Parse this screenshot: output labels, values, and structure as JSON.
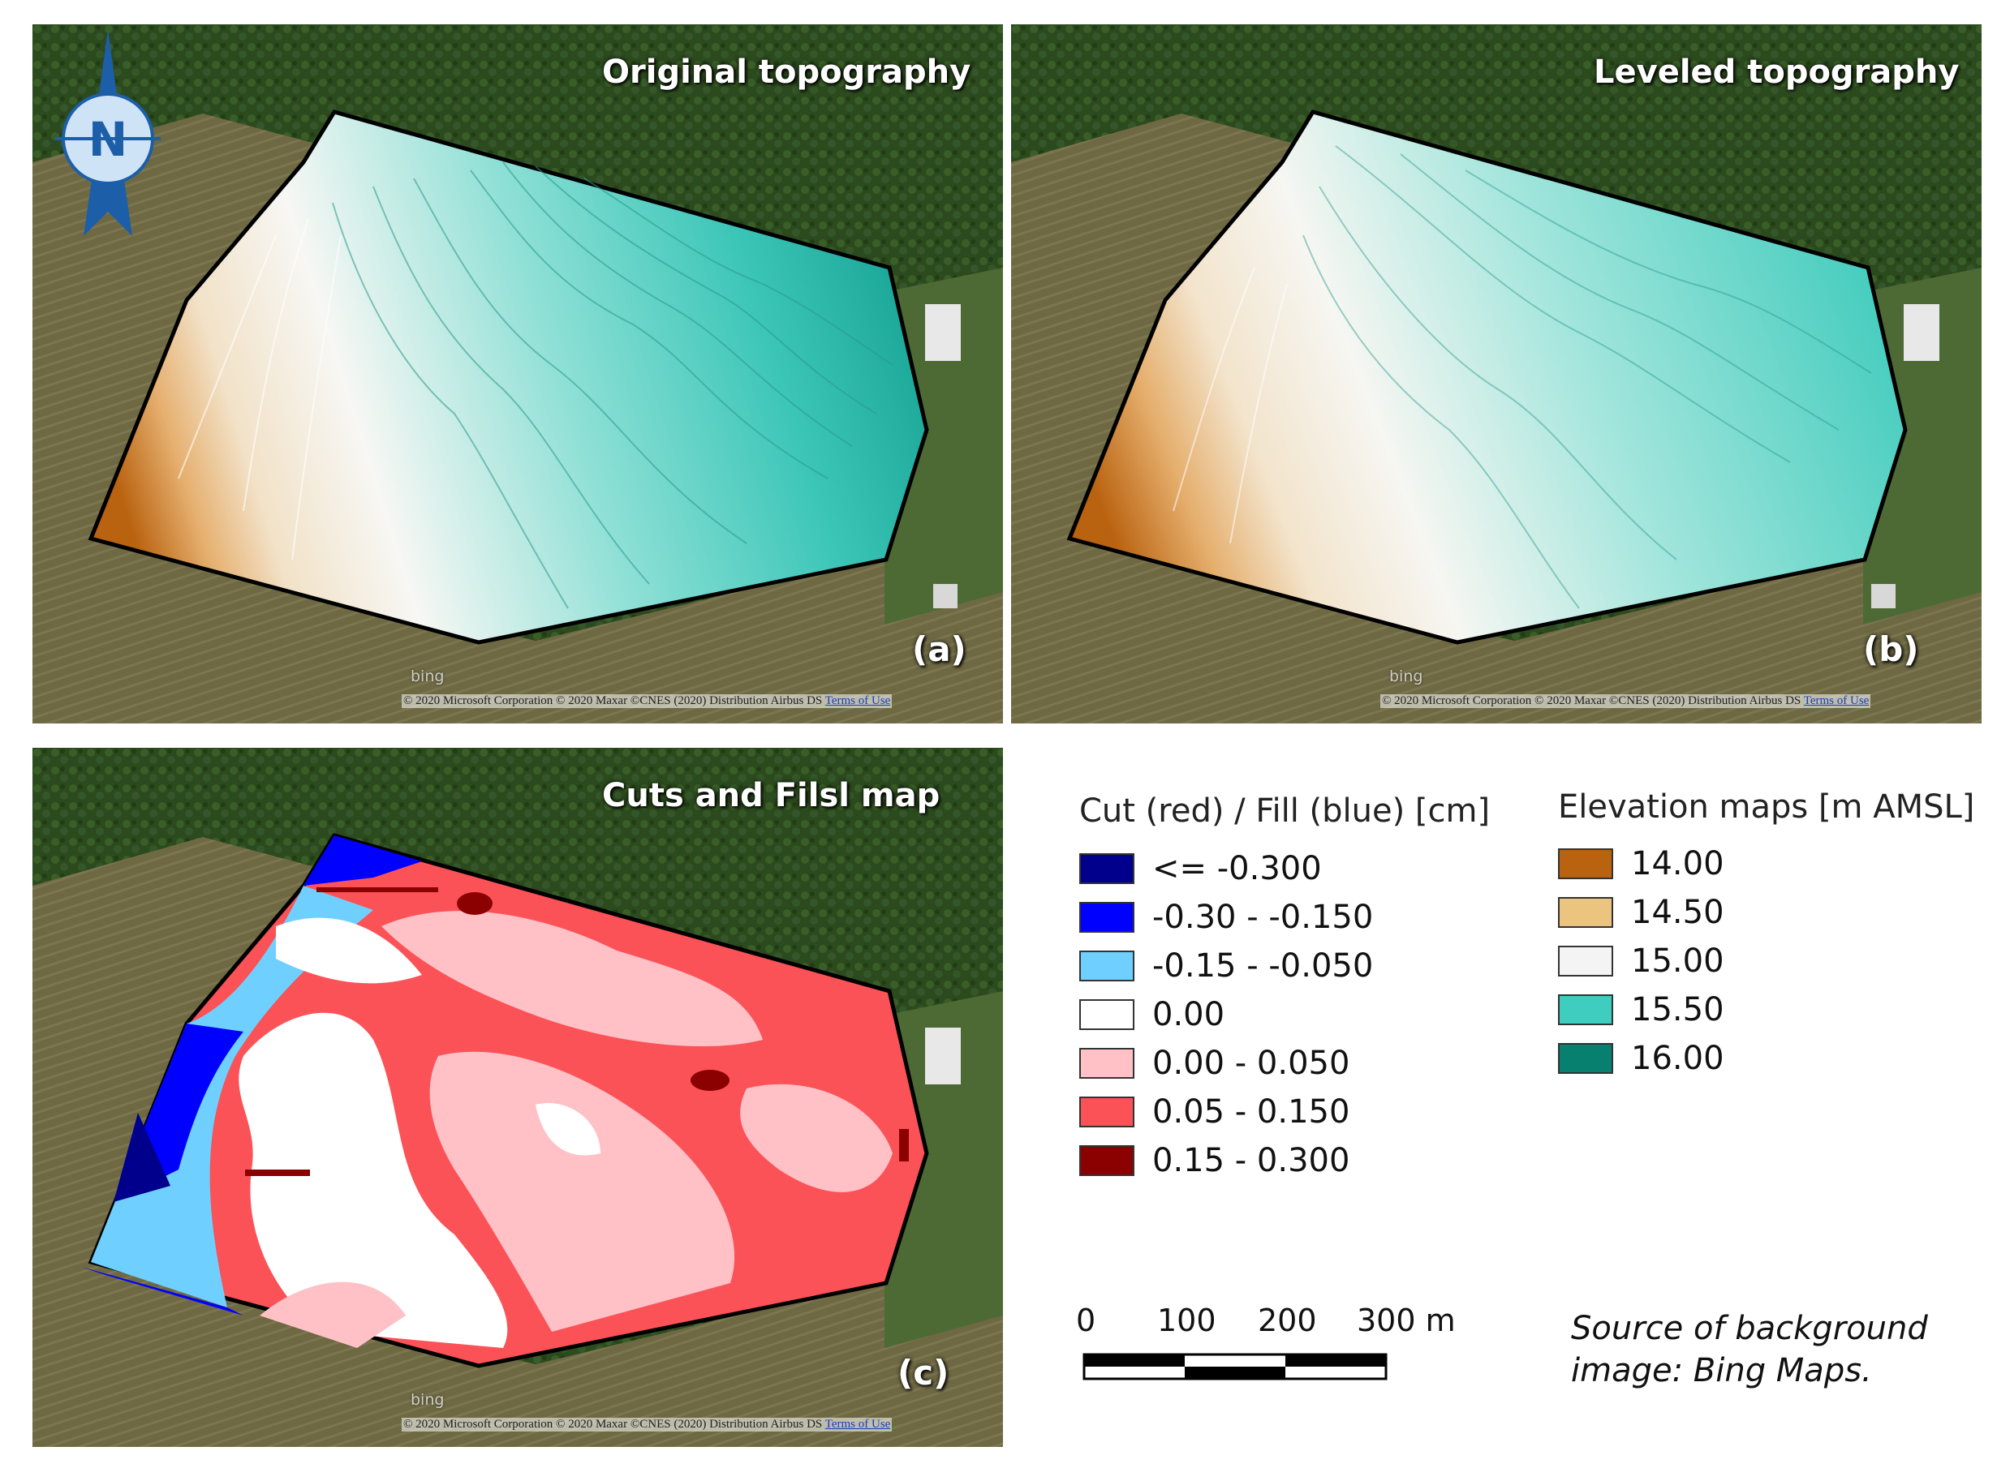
{
  "panels": [
    {
      "title": "Original topography",
      "letter": "(a)",
      "watermark": "bing",
      "attribution": "© 2020 Microsoft Corporation © 2020 Maxar ©CNES (2020) Distribution Airbus DS",
      "terms_link": "Terms of Use"
    },
    {
      "title": "Leveled topography",
      "letter": "(b)",
      "watermark": "bing",
      "attribution": "© 2020 Microsoft Corporation © 2020 Maxar ©CNES (2020) Distribution Airbus DS",
      "terms_link": "Terms of Use"
    },
    {
      "title": "Cuts and Filsl map",
      "letter": "(c)",
      "watermark": "bing",
      "attribution": "© 2020 Microsoft Corporation © 2020 Maxar ©CNES (2020) Distribution Airbus DS",
      "terms_link": "Terms of Use"
    }
  ],
  "north_arrow": {
    "letter": "N"
  },
  "cut_fill_legend": {
    "title": "Cut (red) / Fill (blue) [cm]",
    "items": [
      {
        "label": "<= -0.300",
        "color": "#00008c"
      },
      {
        "label": "-0.30 - -0.150",
        "color": "#0000ff"
      },
      {
        "label": "-0.15 - -0.050",
        "color": "#6fd0ff"
      },
      {
        "label": "0.00",
        "color": "#ffffff"
      },
      {
        "label": "0.00 - 0.050",
        "color": "#ffc0c6"
      },
      {
        "label": "0.05 - 0.150",
        "color": "#fa5257"
      },
      {
        "label": "0.15 - 0.300",
        "color": "#8b0000"
      }
    ]
  },
  "elevation_legend": {
    "title": "Elevation maps [m AMSL]",
    "items": [
      {
        "label": "14.00",
        "color": "#b9620f"
      },
      {
        "label": "14.50",
        "color": "#ebc57f"
      },
      {
        "label": "15.00",
        "color": "#f4f4f4"
      },
      {
        "label": "15.50",
        "color": "#3ecdbf"
      },
      {
        "label": "16.00",
        "color": "#08806f"
      }
    ]
  },
  "scale_bar": {
    "labels": [
      "0",
      "100",
      "200",
      "300 m"
    ]
  },
  "source_note": {
    "line1": "Source of background",
    "line2": "image: Bing Maps."
  },
  "colors": {
    "forest": "#2b4a1d",
    "field": "#6f6a42",
    "field_boundary": "#000000"
  }
}
